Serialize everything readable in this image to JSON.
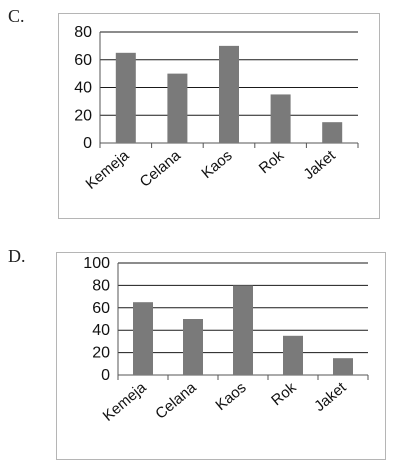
{
  "charts": [
    {
      "label": "C."
    },
    {
      "label": "D."
    }
  ],
  "chart_data": [
    {
      "type": "bar",
      "title": "",
      "xlabel": "",
      "ylabel": "",
      "categories": [
        "Kemeja",
        "Celana",
        "Kaos",
        "Rok",
        "Jaket"
      ],
      "values": [
        65,
        50,
        70,
        35,
        15
      ],
      "ylim": [
        0,
        80
      ],
      "yticks": [
        0,
        20,
        40,
        60,
        80
      ],
      "grid": true,
      "legend": "none",
      "bar_color": "#7a7a7a"
    },
    {
      "type": "bar",
      "title": "",
      "xlabel": "",
      "ylabel": "",
      "categories": [
        "Kemeja",
        "Celana",
        "Kaos",
        "Rok",
        "Jaket"
      ],
      "values": [
        65,
        50,
        80,
        35,
        15
      ],
      "ylim": [
        0,
        100
      ],
      "yticks": [
        0,
        20,
        40,
        60,
        80,
        100
      ],
      "grid": true,
      "legend": "none",
      "bar_color": "#7a7a7a"
    }
  ]
}
